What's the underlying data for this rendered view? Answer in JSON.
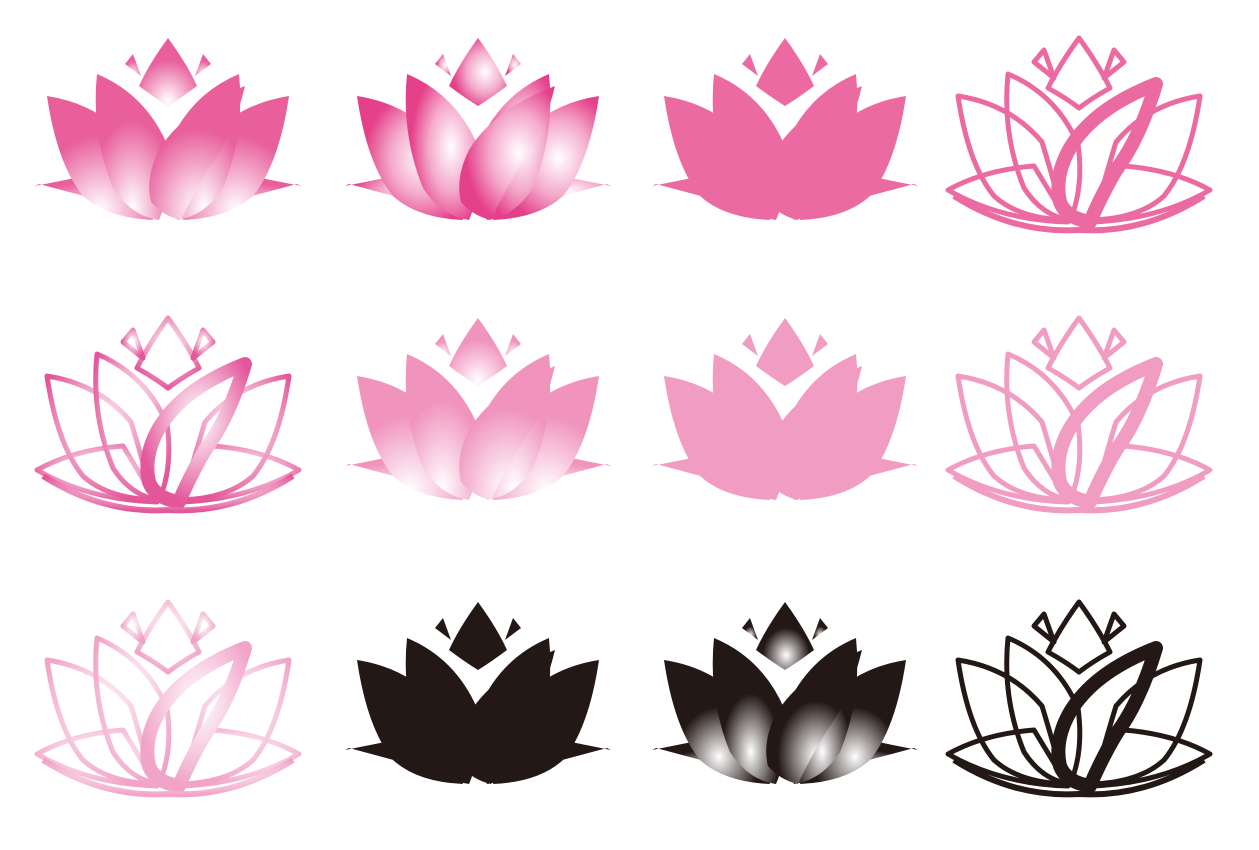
{
  "colors": {
    "pink": "#ec6aa2",
    "pink_deep": "#e5498e",
    "pink_light": "#f19cc3",
    "pink_pale": "#f5b7d3",
    "black": "#231815",
    "white": "#ffffff"
  },
  "icons": [
    {
      "name": "lotus-icon-gradient-center-glow",
      "style": "fill",
      "paint": "glow"
    },
    {
      "name": "lotus-icon-gradient-petal-shine",
      "style": "fill",
      "paint": "shine"
    },
    {
      "name": "lotus-icon-solid-pink",
      "style": "fill",
      "paint": "pink"
    },
    {
      "name": "lotus-icon-outline-pink",
      "style": "outline",
      "paint": "pink"
    },
    {
      "name": "lotus-icon-outline-pink-glow",
      "style": "outline",
      "paint": "glowline"
    },
    {
      "name": "lotus-icon-light-gradient-glow",
      "style": "fill",
      "paint": "lightglow"
    },
    {
      "name": "lotus-icon-solid-light-pink",
      "style": "fill",
      "paint": "pinklight"
    },
    {
      "name": "lotus-icon-outline-light-pink",
      "style": "outline",
      "paint": "pinklight"
    },
    {
      "name": "lotus-icon-outline-pale-glow",
      "style": "outline",
      "paint": "paleglow"
    },
    {
      "name": "lotus-icon-solid-black",
      "style": "fill",
      "paint": "black"
    },
    {
      "name": "lotus-icon-black-glow",
      "style": "fill",
      "paint": "blackglow"
    },
    {
      "name": "lotus-icon-outline-black",
      "style": "outline",
      "paint": "black"
    }
  ]
}
